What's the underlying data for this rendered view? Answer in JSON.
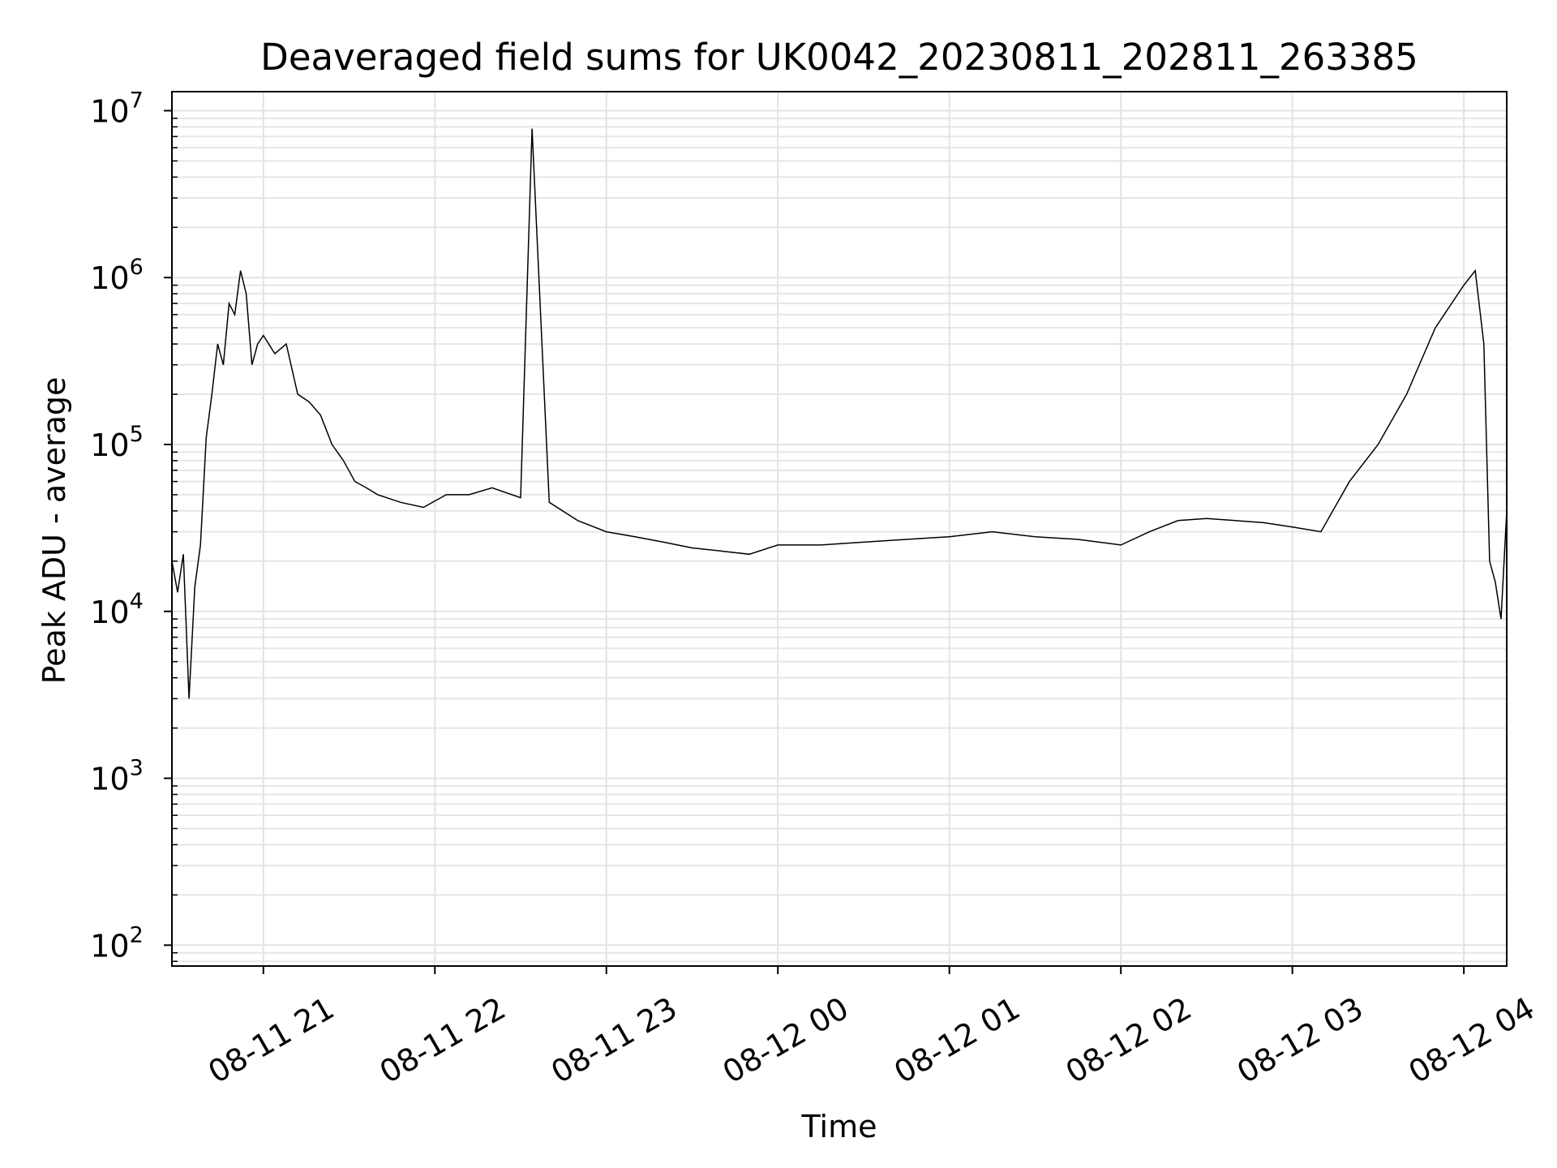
{
  "chart_data": {
    "type": "line",
    "title": "Deaveraged field sums for UK0042_20230811_202811_263385",
    "xlabel": "Time",
    "ylabel": "Peak ADU - average",
    "x_ticks": [
      "08-11 21",
      "08-11 22",
      "08-11 23",
      "08-12 00",
      "08-12 01",
      "08-12 02",
      "08-12 03",
      "08-12 04"
    ],
    "y_ticks": [
      {
        "base": "10",
        "exp": "2"
      },
      {
        "base": "10",
        "exp": "3"
      },
      {
        "base": "10",
        "exp": "4"
      },
      {
        "base": "10",
        "exp": "5"
      },
      {
        "base": "10",
        "exp": "6"
      },
      {
        "base": "10",
        "exp": "7"
      }
    ],
    "y_scale": "log",
    "ylim": [
      75,
      13000000
    ],
    "xlim": [
      "2023-08-11 20:28",
      "2023-08-12 04:15"
    ],
    "grid": true,
    "line_color": "#000000",
    "series": [
      {
        "x": [
          "2023-08-11 20:28",
          "2023-08-11 20:30",
          "2023-08-11 20:32",
          "2023-08-11 20:34",
          "2023-08-11 20:36",
          "2023-08-11 20:38",
          "2023-08-11 20:40",
          "2023-08-11 20:42",
          "2023-08-11 20:44",
          "2023-08-11 20:46",
          "2023-08-11 20:48",
          "2023-08-11 20:50",
          "2023-08-11 20:52",
          "2023-08-11 20:54",
          "2023-08-11 20:56",
          "2023-08-11 20:58",
          "2023-08-11 21:00",
          "2023-08-11 21:04",
          "2023-08-11 21:08",
          "2023-08-11 21:12",
          "2023-08-11 21:16",
          "2023-08-11 21:20",
          "2023-08-11 21:24",
          "2023-08-11 21:28",
          "2023-08-11 21:32",
          "2023-08-11 21:36",
          "2023-08-11 21:40",
          "2023-08-11 21:48",
          "2023-08-11 21:56",
          "2023-08-11 22:04",
          "2023-08-11 22:12",
          "2023-08-11 22:20",
          "2023-08-11 22:30",
          "2023-08-11 22:34",
          "2023-08-11 22:40",
          "2023-08-11 22:50",
          "2023-08-11 23:00",
          "2023-08-11 23:10",
          "2023-08-11 23:20",
          "2023-08-11 23:30",
          "2023-08-11 23:40",
          "2023-08-11 23:50",
          "2023-08-12 00:00",
          "2023-08-12 00:15",
          "2023-08-12 00:30",
          "2023-08-12 00:45",
          "2023-08-12 01:00",
          "2023-08-12 01:15",
          "2023-08-12 01:30",
          "2023-08-12 01:45",
          "2023-08-12 02:00",
          "2023-08-12 02:10",
          "2023-08-12 02:20",
          "2023-08-12 02:30",
          "2023-08-12 02:40",
          "2023-08-12 02:50",
          "2023-08-12 03:00",
          "2023-08-12 03:10",
          "2023-08-12 03:20",
          "2023-08-12 03:30",
          "2023-08-12 03:40",
          "2023-08-12 03:50",
          "2023-08-12 04:00",
          "2023-08-12 04:04",
          "2023-08-12 04:07",
          "2023-08-12 04:09",
          "2023-08-12 04:11",
          "2023-08-12 04:13",
          "2023-08-12 04:15"
        ],
        "y": [
          20000,
          13000,
          22000,
          3000,
          14000,
          25000,
          110000,
          200000,
          400000,
          300000,
          700000,
          600000,
          1100000,
          800000,
          300000,
          400000,
          450000,
          350000,
          400000,
          200000,
          180000,
          150000,
          100000,
          80000,
          60000,
          55000,
          50000,
          45000,
          42000,
          50000,
          50000,
          55000,
          48000,
          7800000,
          45000,
          35000,
          30000,
          28000,
          26000,
          24000,
          23000,
          22000,
          25000,
          25000,
          26000,
          27000,
          28000,
          30000,
          28000,
          27000,
          25000,
          30000,
          35000,
          36000,
          35000,
          34000,
          32000,
          30000,
          60000,
          100000,
          200000,
          500000,
          900000,
          1100000,
          400000,
          20000,
          15000,
          9000,
          40000
        ]
      }
    ]
  }
}
